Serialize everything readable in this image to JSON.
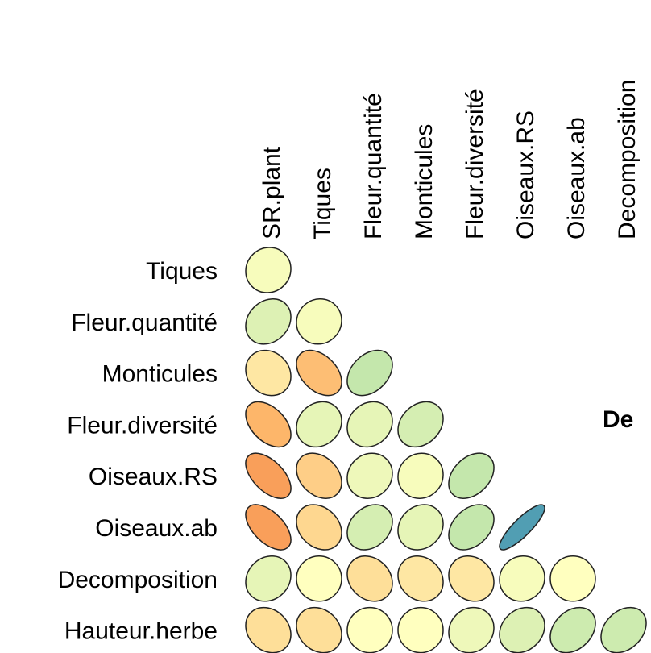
{
  "chart_data": {
    "type": "corrplot",
    "columns": [
      "SR.plant",
      "Tiques",
      "Fleur.quantité",
      "Monticules",
      "Fleur.diversité",
      "Oiseaux.RS",
      "Oiseaux.ab",
      "Decomposition"
    ],
    "rows": [
      "Tiques",
      "Fleur.quantité",
      "Monticules",
      "Fleur.diversité",
      "Oiseaux.RS",
      "Oiseaux.ab",
      "Decomposition",
      "Hauteur.herbe"
    ],
    "values": [
      [
        0.05
      ],
      [
        0.2,
        0.05
      ],
      [
        -0.15,
        -0.4,
        0.35
      ],
      [
        -0.45,
        0.15,
        0.15,
        0.25
      ],
      [
        -0.55,
        -0.3,
        0.1,
        0.05,
        0.35
      ],
      [
        -0.55,
        -0.25,
        0.25,
        0.15,
        0.35,
        0.85
      ],
      [
        0.15,
        0,
        -0.2,
        -0.15,
        -0.15,
        0.05,
        0
      ],
      [
        -0.2,
        -0.2,
        0,
        0,
        0.1,
        0.2,
        0.3,
        0.3
      ]
    ],
    "color_scale": [
      "#d7191c",
      "#fdae61",
      "#ffffbf",
      "#abdda4",
      "#2b83ba"
    ],
    "annotation": "De"
  }
}
